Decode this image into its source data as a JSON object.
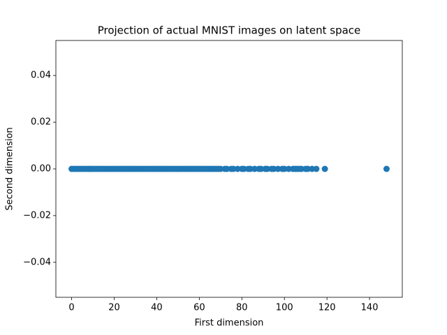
{
  "chart_data": {
    "type": "scatter",
    "title": "Projection of actual MNIST images on latent space",
    "xlabel": "First dimension",
    "ylabel": "Second dimension",
    "color": "#1f77b4",
    "x": [
      0,
      1,
      2,
      3,
      4,
      5,
      6,
      7,
      8,
      9,
      10,
      11,
      12,
      13,
      14,
      15,
      16,
      17,
      18,
      19,
      20,
      21,
      22,
      23,
      24,
      25,
      26,
      27,
      28,
      29,
      30,
      31,
      32,
      33,
      34,
      35,
      36,
      37,
      38,
      39,
      40,
      41,
      42,
      43,
      44,
      45,
      46,
      47,
      48,
      49,
      50,
      51,
      52,
      53,
      54,
      55,
      56,
      57,
      58,
      59,
      60,
      61,
      62,
      63,
      64,
      65,
      66,
      67,
      68,
      69,
      70,
      72,
      73,
      75,
      76,
      78,
      80,
      81,
      83,
      84,
      86,
      88,
      89,
      91,
      92,
      94,
      95,
      97,
      99,
      100,
      102,
      104,
      105,
      106,
      107,
      108,
      110,
      111,
      113,
      115,
      119,
      148
    ],
    "y": [
      0,
      0,
      0,
      0,
      0,
      0,
      0,
      0,
      0,
      0,
      0,
      0,
      0,
      0,
      0,
      0,
      0,
      0,
      0,
      0,
      0,
      0,
      0,
      0,
      0,
      0,
      0,
      0,
      0,
      0,
      0,
      0,
      0,
      0,
      0,
      0,
      0,
      0,
      0,
      0,
      0,
      0,
      0,
      0,
      0,
      0,
      0,
      0,
      0,
      0,
      0,
      0,
      0,
      0,
      0,
      0,
      0,
      0,
      0,
      0,
      0,
      0,
      0,
      0,
      0,
      0,
      0,
      0,
      0,
      0,
      0,
      0,
      0,
      0,
      0,
      0,
      0,
      0,
      0,
      0,
      0,
      0,
      0,
      0,
      0,
      0,
      0,
      0,
      0,
      0,
      0,
      0,
      0,
      0,
      0,
      0,
      0,
      0,
      0,
      0,
      0,
      0
    ],
    "xlim": [
      -7.4,
      155.4
    ],
    "ylim": [
      -0.055,
      0.055
    ],
    "xticks": [
      0,
      20,
      40,
      60,
      80,
      100,
      120,
      140
    ],
    "yticks": [
      {
        "value": -0.04,
        "label": "−0.04"
      },
      {
        "value": -0.02,
        "label": "−0.02"
      },
      {
        "value": 0,
        "label": "0.00"
      },
      {
        "value": 0.02,
        "label": "0.02"
      },
      {
        "value": 0.04,
        "label": "0.04"
      }
    ]
  }
}
